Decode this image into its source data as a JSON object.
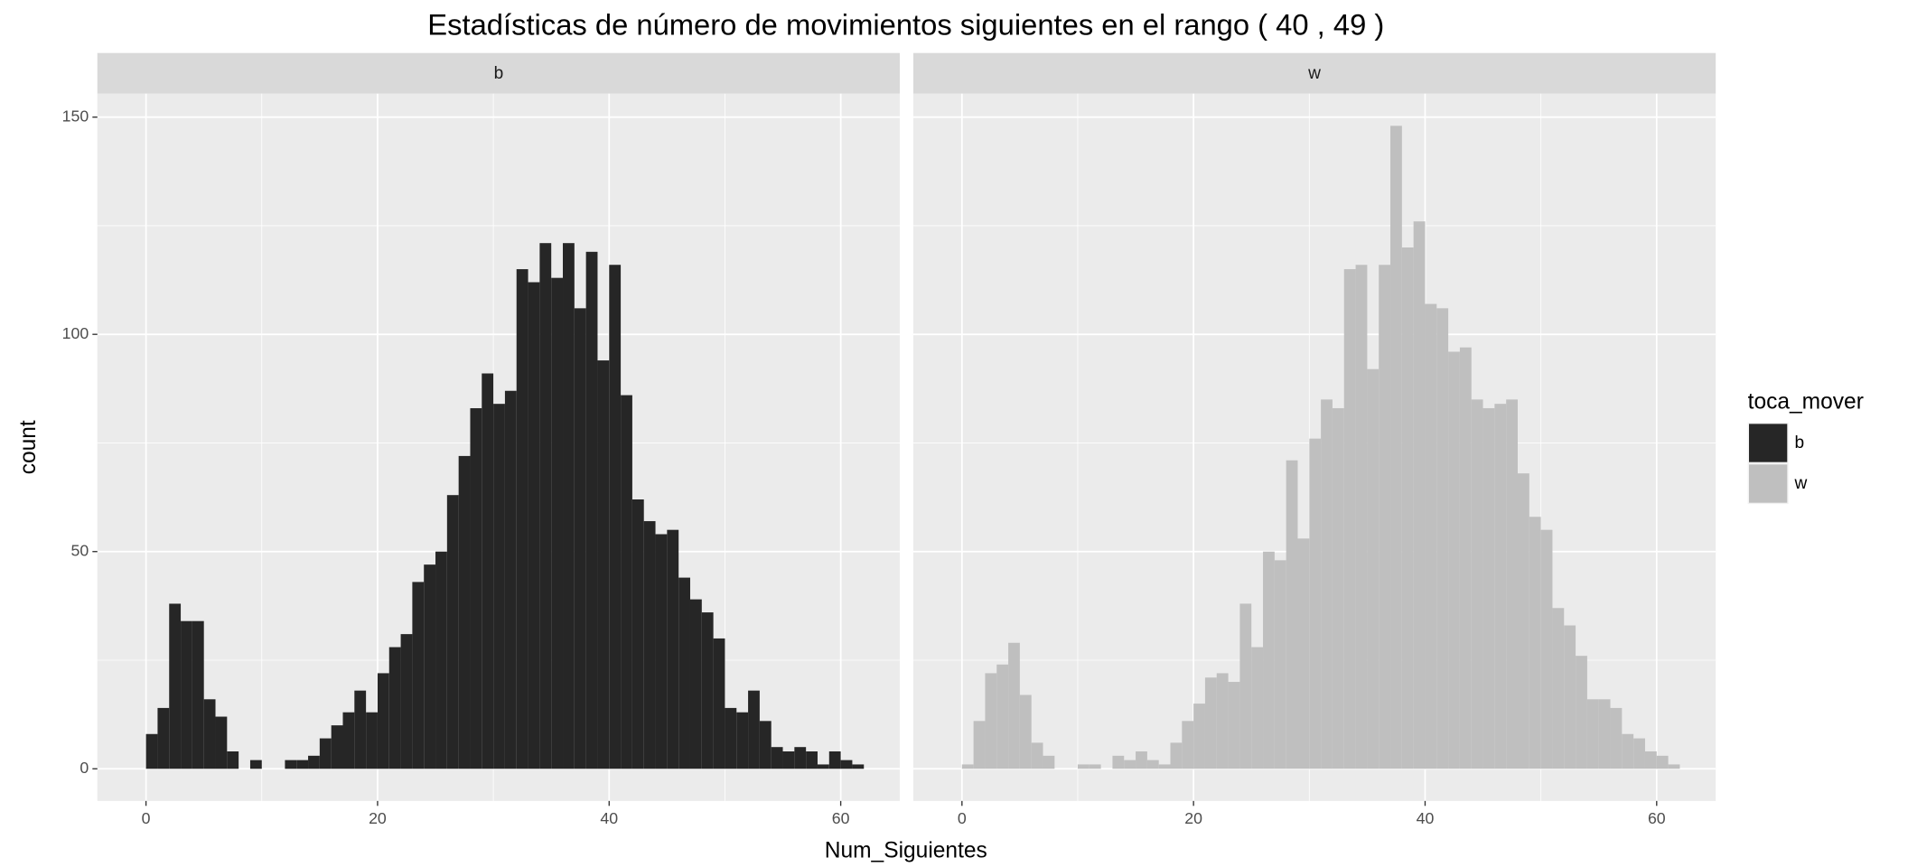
{
  "chart_data": {
    "type": "histogram",
    "title": "Estadísticas de número de movimientos siguientes en el rango ( 40 , 49 )",
    "xlabel": "Num_Siguientes",
    "ylabel": "count",
    "legend_title": "toca_mover",
    "legend": "right",
    "bins": [
      0,
      1,
      2,
      3,
      4,
      5,
      6,
      7,
      8,
      9,
      10,
      11,
      12,
      13,
      14,
      15,
      16,
      17,
      18,
      19,
      20,
      21,
      22,
      23,
      24,
      25,
      26,
      27,
      28,
      29,
      30,
      31,
      32,
      33,
      34,
      35,
      36,
      37,
      38,
      39,
      40,
      41,
      42,
      43,
      44,
      45,
      46,
      47,
      48,
      49,
      50,
      51,
      52,
      53,
      54,
      55,
      56,
      57,
      58,
      59,
      60,
      61,
      62
    ],
    "series": [
      {
        "name": "b",
        "color": "#262626",
        "counts": [
          8,
          14,
          38,
          34,
          34,
          16,
          12,
          4,
          0,
          2,
          0,
          0,
          2,
          2,
          3,
          7,
          10,
          13,
          18,
          13,
          22,
          28,
          31,
          43,
          47,
          50,
          63,
          72,
          83,
          91,
          84,
          87,
          115,
          112,
          121,
          113,
          121,
          106,
          119,
          94,
          116,
          86,
          62,
          57,
          54,
          55,
          44,
          39,
          36,
          30,
          14,
          13,
          18,
          11,
          5,
          4,
          5,
          4,
          1,
          4,
          2,
          1
        ]
      },
      {
        "name": "w",
        "color": "#bfbfbf",
        "counts": [
          1,
          11,
          22,
          24,
          29,
          17,
          6,
          3,
          0,
          0,
          1,
          1,
          0,
          3,
          2,
          4,
          2,
          1,
          6,
          11,
          15,
          21,
          22,
          20,
          38,
          28,
          50,
          48,
          71,
          53,
          76,
          85,
          83,
          115,
          116,
          92,
          116,
          148,
          120,
          126,
          107,
          106,
          96,
          97,
          85,
          83,
          84,
          85,
          68,
          58,
          55,
          37,
          33,
          26,
          16,
          16,
          14,
          8,
          7,
          4,
          3,
          1
        ]
      }
    ],
    "xlim": [
      -4.2,
      65.1
    ],
    "xticks": [
      0,
      20,
      40,
      60
    ],
    "x_minor_grid": [
      10,
      30,
      50
    ],
    "ylim": [
      -7.4,
      155.4
    ],
    "yticks": [
      0,
      50,
      100,
      150
    ],
    "y_minor_grid": [
      25,
      75,
      125
    ],
    "grid": true
  }
}
